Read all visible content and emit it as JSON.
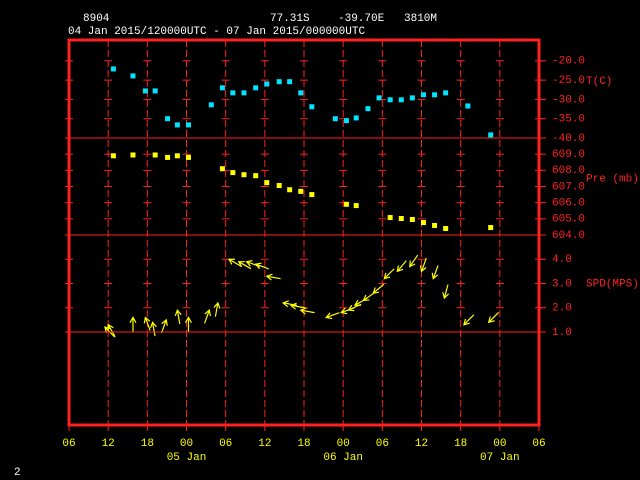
{
  "header": {
    "station": "8904",
    "latitude": "77.31S",
    "longitude": "-39.70E",
    "elevation": "3810M",
    "period": "04 Jan 2015/120000UTC - 07 Jan 2015/000000UTC"
  },
  "page_number": "2",
  "x_axis": {
    "xlim": [
      0,
      72
    ],
    "xticks": [
      {
        "value": 0,
        "label": "06"
      },
      {
        "value": 6,
        "label": "12"
      },
      {
        "value": 12,
        "label": "18"
      },
      {
        "value": 18,
        "label": "00"
      },
      {
        "value": 24,
        "label": "06"
      },
      {
        "value": 30,
        "label": "12"
      },
      {
        "value": 36,
        "label": "18"
      },
      {
        "value": 42,
        "label": "00"
      },
      {
        "value": 48,
        "label": "06"
      },
      {
        "value": 54,
        "label": "12"
      },
      {
        "value": 60,
        "label": "18"
      },
      {
        "value": 66,
        "label": "00"
      },
      {
        "value": 72,
        "label": "06"
      }
    ],
    "dates": [
      {
        "value": 18,
        "label": "05 Jan"
      },
      {
        "value": 42,
        "label": "06 Jan"
      },
      {
        "value": 66,
        "label": "07 Jan"
      }
    ]
  },
  "chart_data": [
    {
      "type": "scatter",
      "ylabel": "T(C)",
      "color": "#00e5ff",
      "ylim": [
        -40,
        -14.6
      ],
      "yticks": [
        {
          "value": -20,
          "label": "-20.0"
        },
        {
          "value": -25,
          "label": "-25.0"
        },
        {
          "value": -30,
          "label": "-30.0"
        },
        {
          "value": -35,
          "label": "-35.0"
        },
        {
          "value": -40,
          "label": "-40.0"
        }
      ],
      "x": [
        6.8,
        9.8,
        11.7,
        13.2,
        15.1,
        16.6,
        18.3,
        21.8,
        23.5,
        25.1,
        26.8,
        28.6,
        30.3,
        32.2,
        33.8,
        35.5,
        37.2,
        40.8,
        42.5,
        44.0,
        45.8,
        47.5,
        49.2,
        50.9,
        52.6,
        54.3,
        56.0,
        57.7,
        61.1,
        64.6
      ],
      "values": [
        -22.1,
        -23.9,
        -27.8,
        -27.8,
        -35.0,
        -36.6,
        -36.6,
        -31.4,
        -27.0,
        -28.3,
        -28.3,
        -27.0,
        -26.0,
        -25.4,
        -25.4,
        -28.3,
        -31.9,
        -35.0,
        -35.5,
        -34.8,
        -32.4,
        -29.6,
        -30.1,
        -30.1,
        -29.6,
        -28.8,
        -28.8,
        -28.3,
        -31.7,
        -39.2
      ]
    },
    {
      "type": "scatter",
      "ylabel": "Pre (mb)",
      "color": "#ffff00",
      "ylim": [
        604,
        610
      ],
      "yticks": [
        {
          "value": 609,
          "label": "609.0"
        },
        {
          "value": 608,
          "label": "608.0"
        },
        {
          "value": 607,
          "label": "607.0"
        },
        {
          "value": 606,
          "label": "606.0"
        },
        {
          "value": 605,
          "label": "605.0"
        },
        {
          "value": 604,
          "label": "604.0"
        }
      ],
      "x": [
        6.8,
        9.8,
        13.2,
        15.1,
        16.6,
        18.3,
        23.5,
        25.1,
        26.8,
        28.6,
        30.3,
        32.2,
        33.8,
        35.5,
        37.2,
        42.5,
        44.0,
        49.2,
        50.9,
        52.6,
        54.3,
        56.0,
        57.7,
        64.6
      ],
      "values": [
        608.9,
        608.95,
        608.95,
        608.8,
        608.9,
        608.8,
        608.1,
        607.86,
        607.73,
        607.67,
        607.24,
        607.06,
        606.8,
        606.7,
        606.5,
        605.9,
        605.82,
        605.08,
        605.02,
        604.96,
        604.77,
        604.59,
        604.4,
        604.46
      ]
    },
    {
      "type": "wind",
      "ylabel": "SPD(MPS)",
      "color": "#ffff00",
      "ylim": [
        1,
        5
      ],
      "yticks": [
        {
          "value": 4,
          "label": "4.0"
        },
        {
          "value": 3,
          "label": "3.0"
        },
        {
          "value": 2,
          "label": "2.0"
        },
        {
          "value": 1,
          "label": "1.0"
        }
      ],
      "x": [
        5.5,
        6.0,
        9.8,
        11.7,
        12.8,
        14.9,
        16.6,
        18.3,
        21.5,
        22.8,
        24.5,
        26.0,
        27.2,
        28.6,
        30.3,
        32.8,
        34.0,
        35.5,
        39.4,
        41.7,
        42.8,
        43.8,
        45.1,
        46.6,
        48.3,
        50.3,
        52.2,
        54.0,
        55.8,
        57.5,
        60.5,
        64.3
      ],
      "values": [
        1.2,
        1.3,
        1.6,
        1.6,
        1.4,
        1.5,
        1.9,
        1.6,
        1.9,
        2.2,
        4.0,
        3.9,
        3.9,
        3.8,
        3.3,
        2.2,
        2.1,
        1.9,
        1.6,
        1.8,
        1.9,
        2.1,
        2.3,
        2.6,
        3.2,
        3.5,
        3.7,
        3.5,
        3.2,
        2.4,
        1.3,
        1.4
      ],
      "directions": [
        315,
        330,
        0,
        340,
        350,
        20,
        350,
        0,
        20,
        10,
        300,
        300,
        290,
        290,
        280,
        280,
        280,
        280,
        250,
        250,
        245,
        240,
        235,
        230,
        225,
        220,
        215,
        200,
        200,
        195,
        225,
        225
      ]
    }
  ]
}
